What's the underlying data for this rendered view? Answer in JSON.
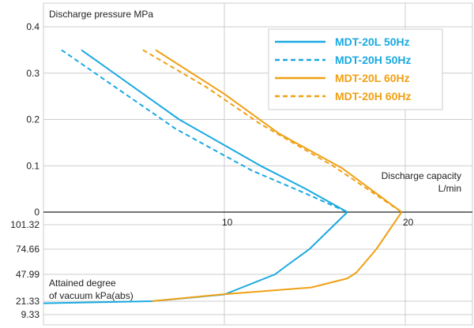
{
  "chart_data": {
    "type": "line",
    "y_label_top": "Discharge pressure MPa",
    "y_label_bottom": [
      "Attained degree",
      "of vacuum kPa(abs)"
    ],
    "x_label": [
      "Discharge capacity",
      "L/min"
    ],
    "x_ticks": [
      "10",
      "20"
    ],
    "y_ticks_pressure": [
      "0.4",
      "0.3",
      "0.2",
      "0.1",
      "0"
    ],
    "y_ticks_vacuum": [
      "101.32",
      "74.66",
      "47.99",
      "21.33",
      "9.33"
    ],
    "xlim": [
      0,
      25
    ],
    "pressure_ylim": [
      0,
      0.4
    ],
    "vacuum_ylim": [
      0,
      101.32
    ],
    "grid": true,
    "legend_position": "top-right",
    "series": [
      {
        "name": "MDT-20L 50Hz",
        "color": "#1aa9e0",
        "dash": false,
        "pressure": [
          [
            2.1,
            0.35
          ],
          [
            7.5,
            0.2
          ],
          [
            12.0,
            0.1
          ],
          [
            14.5,
            0.05
          ],
          [
            16.8,
            0.0
          ]
        ],
        "vacuum": [
          [
            16.8,
            101.32
          ],
          [
            14.7,
            74.66
          ],
          [
            13.5,
            58.0
          ],
          [
            12.8,
            47.99
          ],
          [
            10.0,
            28.0
          ],
          [
            6.0,
            21.33
          ],
          [
            0.0,
            19.5
          ]
        ]
      },
      {
        "name": "MDT-20H 50Hz",
        "color": "#1aa9e0",
        "dash": true,
        "pressure": [
          [
            1.0,
            0.35
          ],
          [
            7.3,
            0.18
          ],
          [
            11.5,
            0.09
          ],
          [
            14.5,
            0.04
          ],
          [
            16.8,
            0.0
          ]
        ],
        "vacuum": []
      },
      {
        "name": "MDT-20L 60Hz",
        "color": "#f0a014",
        "dash": false,
        "pressure": [
          [
            6.2,
            0.35
          ],
          [
            10.0,
            0.255
          ],
          [
            13.0,
            0.17
          ],
          [
            16.5,
            0.095
          ],
          [
            19.8,
            0.0
          ]
        ],
        "vacuum": [
          [
            19.8,
            101.32
          ],
          [
            18.4,
            74.66
          ],
          [
            17.3,
            50.0
          ],
          [
            16.8,
            44.0
          ],
          [
            14.8,
            35.0
          ],
          [
            9.8,
            28.0
          ],
          [
            6.0,
            21.33
          ]
        ]
      },
      {
        "name": "MDT-20H 60Hz",
        "color": "#f0a014",
        "dash": true,
        "pressure": [
          [
            5.5,
            0.35
          ],
          [
            9.0,
            0.27
          ],
          [
            12.0,
            0.19
          ],
          [
            16.0,
            0.1
          ],
          [
            19.8,
            0.0
          ]
        ],
        "vacuum": []
      }
    ]
  }
}
